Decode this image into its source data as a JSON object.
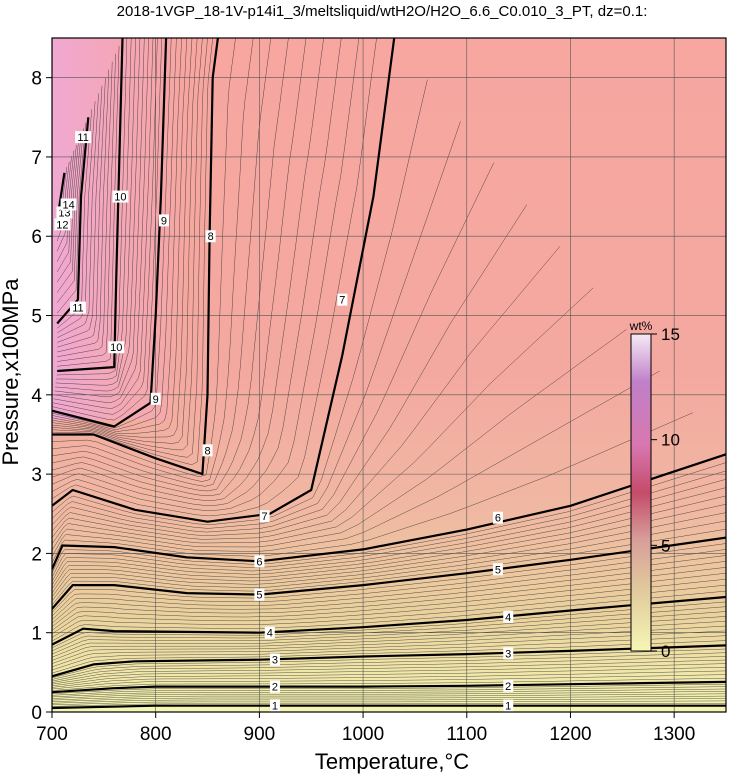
{
  "chart_data": {
    "type": "heatmap",
    "title": "2018-1VGP_18-1V-p14i1_3/meltsliquid/wtH2O/H2O_6.6_C0.010_3_PT, dz=0.1:",
    "xlabel": "Temperature,°C",
    "ylabel": "Pressure,x100MPa",
    "xlim": [
      700,
      1350
    ],
    "ylim": [
      0,
      8.5
    ],
    "x_ticks": [
      700,
      800,
      900,
      1000,
      1100,
      1200,
      1300
    ],
    "y_ticks": [
      0,
      1,
      2,
      3,
      4,
      5,
      6,
      7,
      8
    ],
    "grid": true,
    "colorbar": {
      "title": "wt%",
      "range": [
        0,
        15
      ],
      "ticks": [
        0,
        5,
        10,
        15
      ],
      "colors": [
        "#f6f6b4",
        "#e8c79c",
        "#f2a8a0",
        "#f0a8c0",
        "#d89ad8",
        "#f6eaf6"
      ]
    },
    "contours": [
      {
        "level": 1,
        "points": [
          [
            700,
            0.05
          ],
          [
            800,
            0.08
          ],
          [
            900,
            0.08
          ],
          [
            1000,
            0.08
          ],
          [
            1100,
            0.08
          ],
          [
            1200,
            0.08
          ],
          [
            1350,
            0.08
          ]
        ]
      },
      {
        "level": 2,
        "points": [
          [
            700,
            0.25
          ],
          [
            760,
            0.3
          ],
          [
            800,
            0.32
          ],
          [
            900,
            0.32
          ],
          [
            1000,
            0.32
          ],
          [
            1100,
            0.33
          ],
          [
            1200,
            0.35
          ],
          [
            1350,
            0.38
          ]
        ]
      },
      {
        "level": 3,
        "points": [
          [
            700,
            0.45
          ],
          [
            740,
            0.6
          ],
          [
            780,
            0.64
          ],
          [
            900,
            0.66
          ],
          [
            1000,
            0.7
          ],
          [
            1100,
            0.73
          ],
          [
            1200,
            0.77
          ],
          [
            1350,
            0.84
          ]
        ]
      },
      {
        "level": 4,
        "points": [
          [
            700,
            0.85
          ],
          [
            730,
            1.05
          ],
          [
            760,
            1.02
          ],
          [
            900,
            1.0
          ],
          [
            1000,
            1.07
          ],
          [
            1100,
            1.16
          ],
          [
            1200,
            1.28
          ],
          [
            1350,
            1.45
          ]
        ]
      },
      {
        "level": 5,
        "points": [
          [
            700,
            1.3
          ],
          [
            720,
            1.6
          ],
          [
            760,
            1.6
          ],
          [
            830,
            1.5
          ],
          [
            900,
            1.48
          ],
          [
            1000,
            1.6
          ],
          [
            1100,
            1.75
          ],
          [
            1200,
            1.92
          ],
          [
            1350,
            2.2
          ]
        ]
      },
      {
        "level": 6,
        "points": [
          [
            700,
            1.8
          ],
          [
            710,
            2.1
          ],
          [
            760,
            2.08
          ],
          [
            830,
            1.95
          ],
          [
            900,
            1.9
          ],
          [
            1000,
            2.05
          ],
          [
            1100,
            2.3
          ],
          [
            1200,
            2.6
          ],
          [
            1350,
            3.25
          ]
        ]
      },
      {
        "level": 7,
        "points": [
          [
            700,
            2.6
          ],
          [
            720,
            2.8
          ],
          [
            780,
            2.55
          ],
          [
            850,
            2.4
          ],
          [
            910,
            2.5
          ],
          [
            950,
            2.8
          ],
          [
            980,
            4.5
          ],
          [
            1010,
            6.5
          ],
          [
            1030,
            8.5
          ]
        ]
      },
      {
        "level": 8,
        "points": [
          [
            700,
            3.5
          ],
          [
            740,
            3.5
          ],
          [
            800,
            3.2
          ],
          [
            845,
            3.0
          ],
          [
            850,
            4.0
          ],
          [
            852,
            6.0
          ],
          [
            855,
            8.0
          ],
          [
            860,
            8.5
          ]
        ]
      },
      {
        "level": 9,
        "points": [
          [
            700,
            3.8
          ],
          [
            760,
            3.6
          ],
          [
            795,
            3.9
          ],
          [
            800,
            5.0
          ],
          [
            805,
            6.5
          ],
          [
            810,
            8.5
          ]
        ]
      },
      {
        "level": 10,
        "points": [
          [
            705,
            4.3
          ],
          [
            760,
            4.35
          ],
          [
            762,
            5.5
          ],
          [
            765,
            7.0
          ],
          [
            768,
            8.5
          ]
        ]
      },
      {
        "level": 11,
        "points": [
          [
            705,
            4.9
          ],
          [
            725,
            5.2
          ],
          [
            728,
            6.5
          ],
          [
            735,
            7.5
          ]
        ]
      },
      {
        "level": 12,
        "points": [
          [
            705,
            6.2
          ],
          [
            712,
            6.8
          ]
        ]
      }
    ],
    "contour_labels": [
      {
        "text": "1",
        "x": 915,
        "y": 0.08
      },
      {
        "text": "1",
        "x": 1140,
        "y": 0.08
      },
      {
        "text": "2",
        "x": 915,
        "y": 0.32
      },
      {
        "text": "2",
        "x": 1140,
        "y": 0.33
      },
      {
        "text": "3",
        "x": 915,
        "y": 0.66
      },
      {
        "text": "3",
        "x": 1140,
        "y": 0.74
      },
      {
        "text": "4",
        "x": 910,
        "y": 1.0
      },
      {
        "text": "4",
        "x": 1140,
        "y": 1.2
      },
      {
        "text": "5",
        "x": 900,
        "y": 1.48
      },
      {
        "text": "5",
        "x": 1130,
        "y": 1.8
      },
      {
        "text": "6",
        "x": 900,
        "y": 1.9
      },
      {
        "text": "6",
        "x": 1130,
        "y": 2.45
      },
      {
        "text": "7",
        "x": 905,
        "y": 2.47
      },
      {
        "text": "7",
        "x": 980,
        "y": 5.2
      },
      {
        "text": "8",
        "x": 850,
        "y": 3.3
      },
      {
        "text": "8",
        "x": 853,
        "y": 6.0
      },
      {
        "text": "9",
        "x": 800,
        "y": 3.95
      },
      {
        "text": "9",
        "x": 808,
        "y": 6.2
      },
      {
        "text": "10",
        "x": 762,
        "y": 4.6
      },
      {
        "text": "10",
        "x": 766,
        "y": 6.5
      },
      {
        "text": "11",
        "x": 725,
        "y": 5.1
      },
      {
        "text": "11",
        "x": 730,
        "y": 7.25
      },
      {
        "text": "12",
        "x": 710,
        "y": 6.15
      },
      {
        "text": "13",
        "x": 712,
        "y": 6.3
      },
      {
        "text": "14",
        "x": 716,
        "y": 6.4
      }
    ]
  }
}
